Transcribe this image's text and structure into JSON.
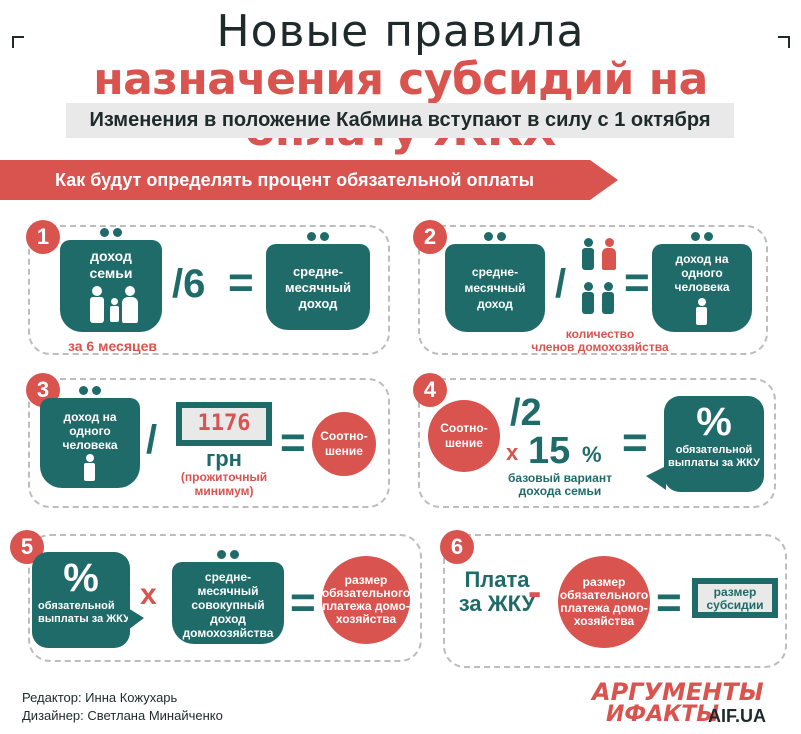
{
  "title": {
    "line1": "Новые правила",
    "line2": "назначения субсидий на оплату ЖКХ"
  },
  "subtitle": "Изменения в положение Кабмина вступают в силу с 1 октября",
  "section_header": "Как будут определять процент обязательной оплаты",
  "step1": {
    "num": "1",
    "purse_left": "доход семьи",
    "op": "/6",
    "eq": "=",
    "purse_right": "средне-месячный доход",
    "note": "за 6 месяцев"
  },
  "step2": {
    "num": "2",
    "purse_left": "средне-месячный доход",
    "op": "/",
    "eq": "=",
    "purse_right": "доход на одного человека",
    "note_line1": "количество",
    "note_line2": "членов домохозяйства"
  },
  "step3": {
    "num": "3",
    "purse": "доход на одного человека",
    "op": "/",
    "bill_value": "1176",
    "bill_unit": "грн",
    "bill_note": "(прожиточный минимум)",
    "eq": "=",
    "circle": "Соотно-шение"
  },
  "step4": {
    "num": "4",
    "circle": "Соотно-шение",
    "div": "/2",
    "x": "x",
    "percent_value": "15",
    "percent_sign": "%",
    "note_line1": "базовый вариант",
    "note_line2": "дохода семьи",
    "eq": "=",
    "bubble_symbol": "%",
    "bubble_text": "обязательной выплаты за ЖКУ"
  },
  "step5": {
    "num": "5",
    "bubble_symbol": "%",
    "bubble_text": "обязательной выплаты за ЖКУ",
    "x": "x",
    "purse": "средне-месячный совокупный доход домохозяйства",
    "eq": "=",
    "circle": "размер обязательного платежа домо-хозяйства"
  },
  "step6": {
    "num": "6",
    "text": "Плата за ЖКУ",
    "minus": "-",
    "circle": "размер обязательного платежа домо-хозяйства",
    "eq": "=",
    "bill": "размер субсидии"
  },
  "credits": {
    "editor": "Редактор: Инна Кожухарь",
    "designer": "Дизайнер: Светлана Минайченко"
  },
  "logo": {
    "line1": "АРГУМЕНТЫ",
    "line2": "ИФАКТЫ",
    "site": "AIF.UA"
  },
  "colors": {
    "teal": "#1f6b6a",
    "red": "#d9534f",
    "grey": "#e9e9e9"
  }
}
